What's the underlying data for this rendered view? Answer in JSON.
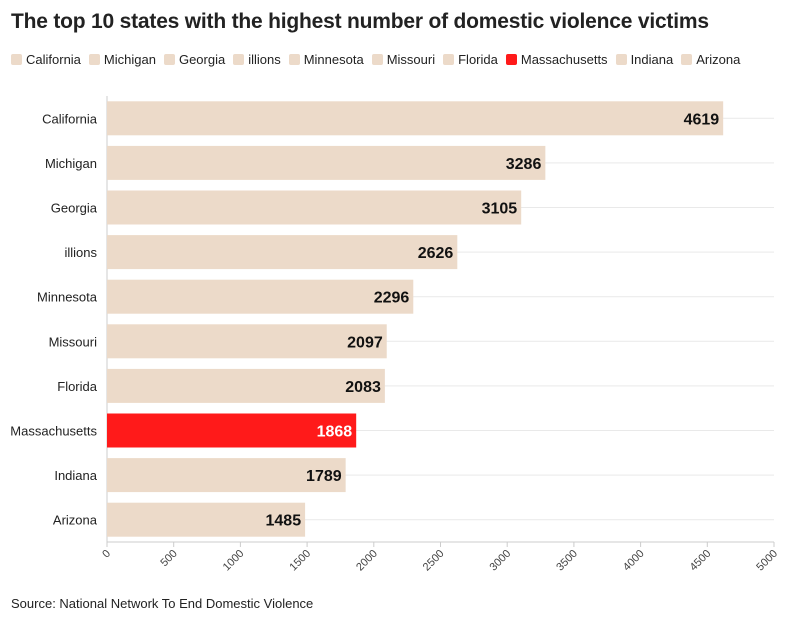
{
  "title": "The top 10 states with the highest number of domestic violence victims",
  "source": "Source: National Network To End Domestic Violence",
  "colors": {
    "default": "#ecdac9",
    "highlight": "#ff1a1a",
    "grid": "#e9e9e9",
    "axis": "#cccccc"
  },
  "legend": [
    {
      "label": "California",
      "color": "#ecdac9"
    },
    {
      "label": "Michigan",
      "color": "#ecdac9"
    },
    {
      "label": "Georgia",
      "color": "#ecdac9"
    },
    {
      "label": "illions",
      "color": "#ecdac9"
    },
    {
      "label": "Minnesota",
      "color": "#ecdac9"
    },
    {
      "label": "Missouri",
      "color": "#ecdac9"
    },
    {
      "label": "Florida",
      "color": "#ecdac9"
    },
    {
      "label": "Massachusetts",
      "color": "#ff1a1a"
    },
    {
      "label": "Indiana",
      "color": "#ecdac9"
    },
    {
      "label": "Arizona",
      "color": "#ecdac9"
    }
  ],
  "chart_data": {
    "type": "bar",
    "orientation": "horizontal",
    "title": "The top 10 states with the highest number of domestic violence victims",
    "categories": [
      "California",
      "Michigan",
      "Georgia",
      "illions",
      "Minnesota",
      "Missouri",
      "Florida",
      "Massachusetts",
      "Indiana",
      "Arizona"
    ],
    "values": [
      4619,
      3286,
      3105,
      2626,
      2296,
      2097,
      2083,
      1868,
      1789,
      1485
    ],
    "highlight": "Massachusetts",
    "xlim": [
      0,
      5000
    ],
    "xticks": [
      "0",
      "500",
      "1000",
      "1500",
      "2000",
      "2500",
      "3000",
      "3500",
      "4000",
      "4500",
      "5000"
    ],
    "xlabel": "",
    "ylabel": "",
    "grid": true,
    "data_labels": true
  }
}
